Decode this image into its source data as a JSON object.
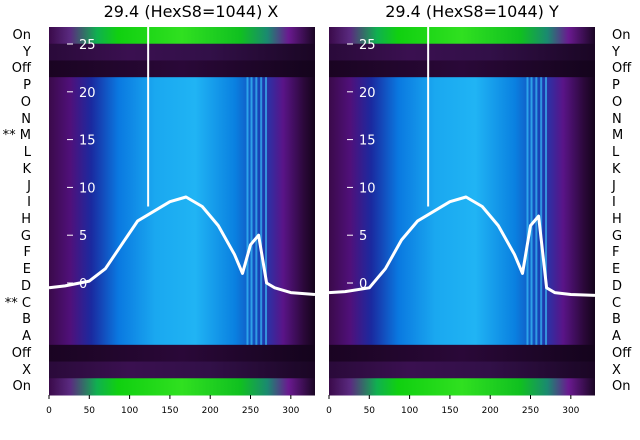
{
  "chart_data": [
    {
      "type": "heatmap",
      "title": "29.4 (HexS8=1044) X",
      "xlim": [
        0,
        330
      ],
      "xticks": [
        0,
        50,
        100,
        150,
        200,
        250,
        300
      ],
      "yticks": [
        0,
        5,
        10,
        15,
        20,
        25
      ],
      "row_labels": [
        "On",
        "Y",
        "Off",
        "P",
        "O",
        "N",
        "** M",
        "L",
        "K",
        "J",
        "I",
        "H",
        "G",
        "F",
        "E",
        "D",
        "** C",
        "B",
        "A",
        "Off",
        "X",
        "On"
      ],
      "profile": {
        "x": [
          0,
          20,
          50,
          70,
          90,
          110,
          130,
          150,
          170,
          190,
          210,
          230,
          240,
          250,
          260,
          270,
          280,
          300,
          330
        ],
        "y": [
          -0.5,
          -0.3,
          0.2,
          1.5,
          4,
          6.5,
          7.5,
          8.5,
          9,
          8,
          6,
          3,
          1,
          4,
          5,
          0,
          -0.5,
          -1,
          -1.2
        ]
      }
    },
    {
      "type": "heatmap",
      "title": "29.4 (HexS8=1044) Y",
      "xlim": [
        0,
        330
      ],
      "xticks": [
        0,
        50,
        100,
        150,
        200,
        250,
        300
      ],
      "yticks": [
        0,
        5,
        10,
        15,
        20,
        25
      ],
      "row_labels": [
        "On",
        "Y",
        "Off",
        "P",
        "O",
        "N",
        "M",
        "L",
        "K",
        "J",
        "I",
        "H",
        "G",
        "F",
        "E",
        "D",
        "C",
        "B",
        "A",
        "Off",
        "X",
        "On"
      ],
      "profile": {
        "x": [
          0,
          20,
          50,
          70,
          90,
          110,
          130,
          150,
          170,
          190,
          210,
          230,
          240,
          250,
          260,
          270,
          280,
          300,
          330
        ],
        "y": [
          -1,
          -0.9,
          -0.5,
          1.5,
          4.5,
          6.5,
          7.5,
          8.5,
          9,
          8,
          6,
          3,
          1,
          6,
          7,
          -0.5,
          -1,
          -1.2,
          -1.3
        ]
      }
    }
  ]
}
